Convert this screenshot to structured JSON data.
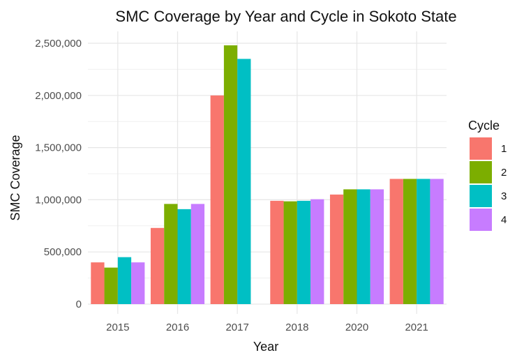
{
  "chart_data": {
    "type": "bar",
    "title": "SMC Coverage by Year and Cycle in Sokoto State",
    "xlabel": "Year",
    "ylabel": "SMC Coverage",
    "categories": [
      "2015",
      "2016",
      "2017",
      "2018",
      "2020",
      "2021"
    ],
    "ylim": [
      0,
      2500000
    ],
    "yticks": [
      0,
      500000,
      1000000,
      1500000,
      2000000,
      2500000
    ],
    "ytick_labels": [
      "0",
      "500,000",
      "1,000,000",
      "1,500,000",
      "2,000,000",
      "2,500,000"
    ],
    "grid": true,
    "legend": {
      "title": "Cycle",
      "position": "right"
    },
    "series": [
      {
        "name": "1",
        "color": "#F8766D",
        "values": [
          400000,
          730000,
          2000000,
          990000,
          1050000,
          1200000
        ]
      },
      {
        "name": "2",
        "color": "#7CAE00",
        "values": [
          350000,
          960000,
          2480000,
          985000,
          1100000,
          1200000
        ]
      },
      {
        "name": "3",
        "color": "#00BFC4",
        "values": [
          450000,
          910000,
          2350000,
          990000,
          1100000,
          1200000
        ]
      },
      {
        "name": "4",
        "color": "#C77CFF",
        "values": [
          400000,
          960000,
          null,
          1005000,
          1100000,
          1200000
        ]
      }
    ]
  }
}
